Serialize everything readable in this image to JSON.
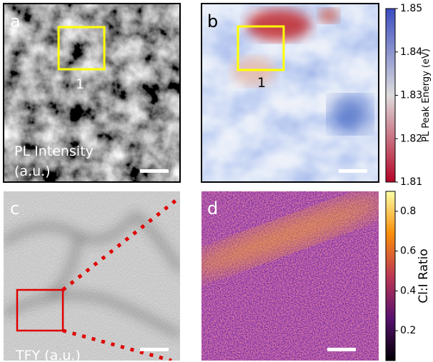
{
  "panels": [
    {
      "label": "a",
      "caption": [
        "PL Intensity",
        "(a.u.)"
      ],
      "box_label": "1"
    },
    {
      "label": "b",
      "box_label": "1"
    },
    {
      "label": "c",
      "caption": [
        "TFY (a.u.)"
      ]
    },
    {
      "label": "d"
    }
  ],
  "colorbars": [
    {
      "label": "PL Peak Energy (eV)",
      "lim": [
        1.81,
        1.85
      ],
      "ticks": [
        1.81,
        1.82,
        1.83,
        1.84,
        1.85
      ]
    },
    {
      "label": "Cl:I Ratio",
      "lim": [
        0.05,
        0.9
      ],
      "ticks": [
        0.2,
        0.4,
        0.6,
        0.8
      ]
    }
  ]
}
